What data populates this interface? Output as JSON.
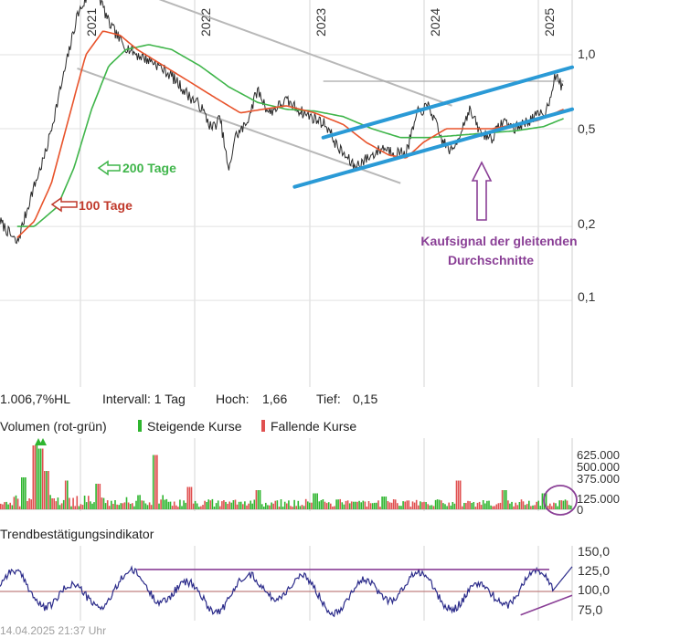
{
  "chart_data": [
    {
      "type": "line",
      "panel": "price",
      "x_axis": {
        "tick_labels": [
          "2021",
          "2022",
          "2023",
          "2024",
          "2025"
        ]
      },
      "y_axis": {
        "scale": "log",
        "tick_labels": [
          "1,0",
          "0,5",
          "0,2",
          "0,1"
        ],
        "ticks": [
          1.0,
          0.5,
          0.2,
          0.1
        ],
        "ylim": [
          0.065,
          2.0
        ]
      },
      "grid": true,
      "colors": {
        "price": "#2b2b2b",
        "ma100": "#e8532b",
        "ma200": "#3fb54a",
        "channel": "#b8b8b8",
        "trendline": "#2a9ad6",
        "resistance": "#a8a8a8",
        "signal": "#8a3f96"
      },
      "price_path": [
        [
          0,
          0.21
        ],
        [
          0.03,
          0.17
        ],
        [
          0.055,
          0.27
        ],
        [
          0.08,
          0.4
        ],
        [
          0.11,
          0.8
        ],
        [
          0.135,
          1.45
        ],
        [
          0.165,
          1.95
        ],
        [
          0.19,
          1.35
        ],
        [
          0.215,
          1.1
        ],
        [
          0.24,
          1.0
        ],
        [
          0.27,
          0.93
        ],
        [
          0.3,
          0.82
        ],
        [
          0.33,
          0.68
        ],
        [
          0.35,
          0.62
        ],
        [
          0.37,
          0.5
        ],
        [
          0.385,
          0.55
        ],
        [
          0.4,
          0.33
        ],
        [
          0.41,
          0.46
        ],
        [
          0.43,
          0.52
        ],
        [
          0.45,
          0.72
        ],
        [
          0.47,
          0.58
        ],
        [
          0.5,
          0.65
        ],
        [
          0.53,
          0.58
        ],
        [
          0.55,
          0.55
        ],
        [
          0.57,
          0.52
        ],
        [
          0.59,
          0.42
        ],
        [
          0.62,
          0.35
        ],
        [
          0.65,
          0.39
        ],
        [
          0.67,
          0.42
        ],
        [
          0.69,
          0.4
        ],
        [
          0.71,
          0.4
        ],
        [
          0.73,
          0.58
        ],
        [
          0.75,
          0.62
        ],
        [
          0.77,
          0.46
        ],
        [
          0.79,
          0.4
        ],
        [
          0.81,
          0.52
        ],
        [
          0.82,
          0.6
        ],
        [
          0.84,
          0.48
        ],
        [
          0.86,
          0.46
        ],
        [
          0.88,
          0.54
        ],
        [
          0.9,
          0.5
        ],
        [
          0.93,
          0.55
        ],
        [
          0.955,
          0.59
        ],
        [
          0.97,
          0.82
        ],
        [
          0.985,
          0.73
        ]
      ],
      "ma100_path": [
        [
          0.03,
          0.18
        ],
        [
          0.06,
          0.21
        ],
        [
          0.09,
          0.3
        ],
        [
          0.12,
          0.55
        ],
        [
          0.15,
          1.0
        ],
        [
          0.18,
          1.25
        ],
        [
          0.21,
          1.2
        ],
        [
          0.24,
          1.05
        ],
        [
          0.28,
          0.92
        ],
        [
          0.33,
          0.78
        ],
        [
          0.38,
          0.66
        ],
        [
          0.42,
          0.58
        ],
        [
          0.46,
          0.6
        ],
        [
          0.5,
          0.62
        ],
        [
          0.55,
          0.58
        ],
        [
          0.6,
          0.52
        ],
        [
          0.64,
          0.44
        ],
        [
          0.68,
          0.39
        ],
        [
          0.71,
          0.38
        ],
        [
          0.74,
          0.44
        ],
        [
          0.78,
          0.5
        ],
        [
          0.82,
          0.5
        ],
        [
          0.86,
          0.5
        ],
        [
          0.9,
          0.52
        ],
        [
          0.94,
          0.54
        ],
        [
          0.985,
          0.6
        ]
      ],
      "ma200_path": [
        [
          0.03,
          0.2
        ],
        [
          0.06,
          0.2
        ],
        [
          0.1,
          0.24
        ],
        [
          0.13,
          0.35
        ],
        [
          0.16,
          0.6
        ],
        [
          0.19,
          0.9
        ],
        [
          0.22,
          1.05
        ],
        [
          0.26,
          1.1
        ],
        [
          0.3,
          1.05
        ],
        [
          0.35,
          0.9
        ],
        [
          0.4,
          0.74
        ],
        [
          0.45,
          0.64
        ],
        [
          0.5,
          0.6
        ],
        [
          0.55,
          0.59
        ],
        [
          0.6,
          0.56
        ],
        [
          0.65,
          0.5
        ],
        [
          0.7,
          0.46
        ],
        [
          0.75,
          0.46
        ],
        [
          0.8,
          0.47
        ],
        [
          0.85,
          0.48
        ],
        [
          0.9,
          0.49
        ],
        [
          0.95,
          0.51
        ],
        [
          0.985,
          0.55
        ]
      ],
      "channel_lines": [
        [
          [
            0.165,
            2.1
          ],
          [
            0.79,
            0.62
          ]
        ],
        [
          [
            0.135,
            0.88
          ],
          [
            0.7,
            0.3
          ]
        ],
        [
          [
            0.565,
            0.78
          ],
          [
            0.985,
            0.78
          ]
        ]
      ],
      "trend_lines": [
        [
          [
            0.565,
            0.46
          ],
          [
            1.0,
            0.89
          ]
        ],
        [
          [
            0.515,
            0.29
          ],
          [
            1.0,
            0.6
          ]
        ]
      ],
      "annotations": {
        "ma200_label": "200 Tage",
        "ma100_label": "100 Tage",
        "signal_line1": "Kaufsignal der gleitenden",
        "signal_line2": "Durchschnitte"
      }
    },
    {
      "type": "bar",
      "panel": "volume",
      "title": "Volumen (rot-grün)",
      "legend": [
        {
          "label": "Steigende Kurse",
          "color": "#2fb52f"
        },
        {
          "label": "Fallende Kurse",
          "color": "#e05050"
        }
      ],
      "y_axis": {
        "tick_labels": [
          "625.000",
          "500.000",
          "375.000",
          "125.000",
          "0"
        ],
        "ticks": [
          625000,
          500000,
          375000,
          125000,
          0
        ],
        "ylim": [
          0,
          760000
        ]
      },
      "peaks": [
        [
          0.04,
          0.5
        ],
        [
          0.06,
          1.0
        ],
        [
          0.07,
          0.95
        ],
        [
          0.08,
          0.6
        ],
        [
          0.115,
          0.45
        ],
        [
          0.17,
          0.4
        ],
        [
          0.27,
          0.85
        ],
        [
          0.33,
          0.35
        ],
        [
          0.45,
          0.3
        ],
        [
          0.55,
          0.25
        ],
        [
          0.67,
          0.2
        ],
        [
          0.8,
          0.45
        ],
        [
          0.88,
          0.3
        ],
        [
          0.95,
          0.25
        ]
      ]
    },
    {
      "type": "line",
      "panel": "oscillator",
      "title": "Trendbestätigungsindikator",
      "y_axis": {
        "tick_labels": [
          "150,0",
          "125,0",
          "100,0",
          "75,0"
        ],
        "ticks": [
          150,
          125,
          100,
          75
        ],
        "ylim": [
          62,
          158
        ]
      },
      "reference_line": 100,
      "colors": {
        "line": "#2b2b8a",
        "ref": "#c08080",
        "annot": "#8a3f96"
      },
      "annotation_lines": [
        [
          [
            0.24,
            128
          ],
          [
            0.96,
            128
          ]
        ],
        [
          [
            0.91,
            70
          ],
          [
            1.0,
            95
          ]
        ]
      ]
    }
  ],
  "info_bar": {
    "change": "1.006,7%HL",
    "interval": "Intervall: 1 Tag",
    "high_label": "Hoch:",
    "high_value": "1,66",
    "low_label": "Tief:",
    "low_value": "0,15"
  },
  "footer": {
    "timestamp": "14.04.2025 21:37 Uhr"
  }
}
